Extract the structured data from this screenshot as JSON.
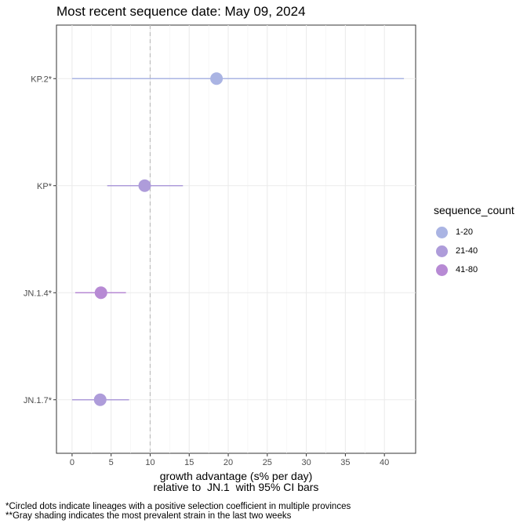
{
  "chart_data": {
    "type": "scatter",
    "title": "Most recent sequence date: May 09, 2024",
    "xlabel": "growth advantage (s% per day)",
    "xlabel2": "relative to  JN.1  with 95% CI bars",
    "xlim": [
      -2,
      44
    ],
    "x_ticks": [
      0,
      5,
      10,
      15,
      20,
      25,
      30,
      35,
      40
    ],
    "reference_line_x": 10,
    "grid": true,
    "legend": {
      "title": "sequence_count",
      "position": "right",
      "items": [
        {
          "label": "1-20",
          "color": "#aab4e3"
        },
        {
          "label": "21-40",
          "color": "#ae9cda"
        },
        {
          "label": "41-80",
          "color": "#b78ad4"
        }
      ]
    },
    "points": [
      {
        "lineage": "KP.2*",
        "estimate": 18.5,
        "ci_low": 0,
        "ci_high": 42.5,
        "sequence_count": "1-20",
        "color": "#aab4e3"
      },
      {
        "lineage": "KP*",
        "estimate": 9.3,
        "ci_low": 4.5,
        "ci_high": 14.2,
        "sequence_count": "21-40",
        "color": "#ae9cda"
      },
      {
        "lineage": "JN.1.4*",
        "estimate": 3.7,
        "ci_low": 0.4,
        "ci_high": 6.9,
        "sequence_count": "41-80",
        "color": "#b78ad4"
      },
      {
        "lineage": "JN.1.7*",
        "estimate": 3.6,
        "ci_low": 0,
        "ci_high": 7.3,
        "sequence_count": "21-40",
        "color": "#ae9cda"
      }
    ]
  },
  "footnotes": {
    "line1": "*Circled dots indicate lineages with a positive selection coefficient in multiple provinces",
    "line2": "**Gray shading indicates the most prevalent strain in the last two weeks"
  }
}
